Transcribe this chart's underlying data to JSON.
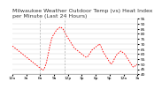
{
  "title": "Milwaukee Weather Outdoor Temp (vs) Heat Index per Minute (Last 24 Hours)",
  "ylabel": "",
  "xlabel": "",
  "background_color": "#ffffff",
  "line_color": "#ff0000",
  "grid_color": "#cccccc",
  "vline_color": "#aaaaaa",
  "title_fontsize": 4.5,
  "tick_fontsize": 3.2,
  "ylim": [
    40,
    95
  ],
  "yticks": [
    40,
    45,
    50,
    55,
    60,
    65,
    70,
    75,
    80,
    85,
    90,
    95
  ],
  "vline_positions": [
    0.22,
    0.42
  ],
  "x_values": [
    0,
    1,
    2,
    3,
    4,
    5,
    6,
    7,
    8,
    9,
    10,
    11,
    12,
    13,
    14,
    15,
    16,
    17,
    18,
    19,
    20,
    21,
    22,
    23,
    24,
    25,
    26,
    27,
    28,
    29,
    30,
    31,
    32,
    33,
    34,
    35,
    36,
    37,
    38,
    39,
    40,
    41,
    42,
    43,
    44,
    45,
    46,
    47,
    48,
    49,
    50,
    51,
    52,
    53,
    54,
    55,
    56,
    57,
    58,
    59,
    60,
    61,
    62,
    63,
    64,
    65,
    66,
    67,
    68,
    69,
    70,
    71,
    72,
    73,
    74,
    75,
    76,
    77,
    78,
    79,
    80,
    81,
    82,
    83,
    84,
    85,
    86,
    87,
    88,
    89,
    90,
    91,
    92,
    93,
    94,
    95,
    96,
    97,
    98,
    99
  ],
  "y_values": [
    68,
    67,
    66,
    65,
    64,
    63,
    62,
    61,
    60,
    59,
    58,
    57,
    56,
    55,
    54,
    53,
    52,
    51,
    50,
    49,
    48,
    47,
    46,
    45,
    44,
    45,
    48,
    52,
    58,
    64,
    70,
    75,
    78,
    80,
    82,
    84,
    85,
    86,
    87,
    86,
    85,
    83,
    80,
    78,
    76,
    74,
    72,
    70,
    68,
    66,
    65,
    64,
    63,
    62,
    61,
    60,
    59,
    58,
    57,
    57,
    58,
    60,
    62,
    64,
    65,
    66,
    67,
    68,
    69,
    70,
    68,
    65,
    62,
    60,
    58,
    56,
    54,
    52,
    50,
    51,
    53,
    56,
    58,
    60,
    61,
    62,
    63,
    62,
    61,
    60,
    58,
    56,
    54,
    52,
    50,
    48,
    47,
    48,
    49,
    50
  ],
  "num_xticks": 10
}
